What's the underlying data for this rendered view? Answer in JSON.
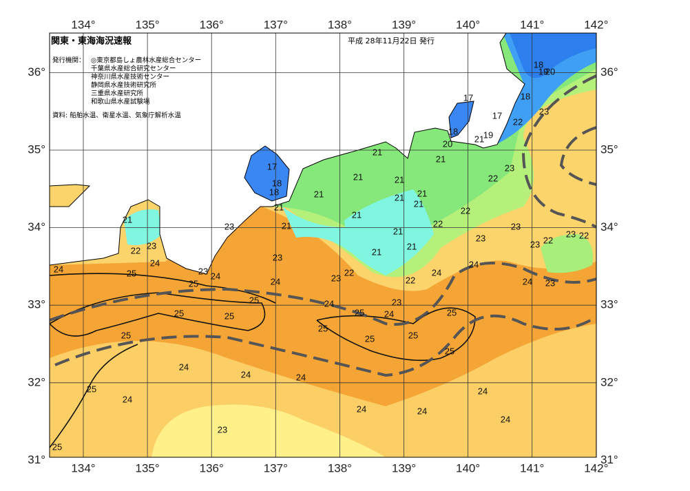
{
  "title": "関東・東海海況速報",
  "date": "平成 28年11月22日 発行",
  "publisher_heading": "発行機関：",
  "publishers": [
    "◎東京都島しょ農林水産総合センター",
    "千葉県水産総合研究センター",
    "神奈川県水産技術センター",
    "静岡県水産技術研究所",
    "三重県水産研究所",
    "和歌山県水産試験場"
  ],
  "source": "資料: 船舶水温、衛星水温、気象庁解析水温",
  "map": {
    "lon_ticks": [
      {
        "value": 134,
        "label": "134°"
      },
      {
        "value": 135,
        "label": "135°"
      },
      {
        "value": 136,
        "label": "136°"
      },
      {
        "value": 137,
        "label": "137°"
      },
      {
        "value": 138,
        "label": "138°"
      },
      {
        "value": 139,
        "label": "139°"
      },
      {
        "value": 140,
        "label": "140°"
      },
      {
        "value": 141,
        "label": "141°"
      },
      {
        "value": 142,
        "label": "142°"
      }
    ],
    "lat_ticks": [
      {
        "value": 31,
        "label": "31°"
      },
      {
        "value": 32,
        "label": "32°"
      },
      {
        "value": 33,
        "label": "33°"
      },
      {
        "value": 34,
        "label": "34°"
      },
      {
        "value": 35,
        "label": "35°"
      },
      {
        "value": 36,
        "label": "36°"
      }
    ],
    "contour_labels": [
      18,
      19,
      20,
      18,
      17,
      17,
      23,
      22,
      18,
      20,
      21,
      19,
      21,
      21,
      23,
      22,
      21,
      21,
      17,
      18,
      18,
      21,
      21,
      21,
      21,
      21,
      21,
      22,
      22,
      21,
      23,
      21,
      21,
      23,
      23,
      22,
      23,
      22,
      23,
      22,
      23,
      21,
      21,
      23,
      24,
      24,
      25,
      23,
      24,
      22,
      23,
      24,
      24,
      24,
      23,
      25,
      24,
      22,
      25,
      24,
      23,
      25,
      25,
      25,
      24,
      25,
      25,
      25,
      25,
      25,
      25,
      24,
      24,
      24,
      25,
      24,
      24,
      24,
      24,
      24,
      23,
      25
    ]
  }
}
